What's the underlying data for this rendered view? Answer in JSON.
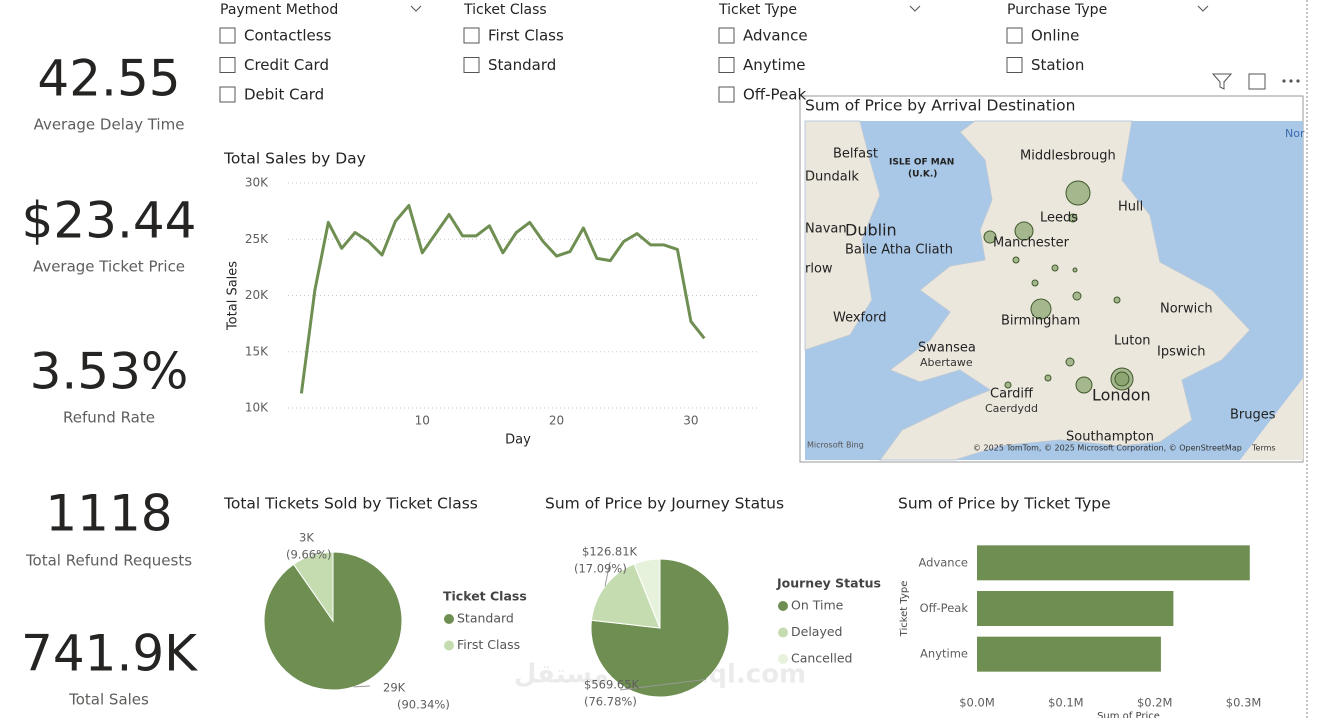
{
  "kpis": [
    {
      "value": "42.55",
      "label": "Average Delay Time"
    },
    {
      "value": "$23.44",
      "label": "Average Ticket Price"
    },
    {
      "value": "3.53%",
      "label": "Refund Rate"
    },
    {
      "value": "1118",
      "label": "Total Refund Requests"
    },
    {
      "value": "741.9K",
      "label": "Total Sales"
    }
  ],
  "slicers": [
    {
      "title": "Payment Method",
      "options": [
        "Contactless",
        "Credit Card",
        "Debit Card"
      ]
    },
    {
      "title": "Ticket Class",
      "options": [
        "First Class",
        "Standard"
      ]
    },
    {
      "title": "Ticket Type",
      "options": [
        "Advance",
        "Anytime",
        "Off-Peak"
      ]
    },
    {
      "title": "Purchase Type",
      "options": [
        "Online",
        "Station"
      ]
    }
  ],
  "map": {
    "title": "Sum of Price by Arrival Destination",
    "places": [
      "Belfast",
      "Dundalk",
      "ISLE OF MAN",
      "(U.K.)",
      "Middlesbrough",
      "Dublin",
      "Baile Atha Cliath",
      "Navan",
      "Leeds",
      "Hull",
      "Manchester",
      "rlow",
      "Wexford",
      "Birmingham",
      "Norwich",
      "Swansea",
      "Abertawe",
      "Luton",
      "Ipswich",
      "Cardiff",
      "Caerdydd",
      "London",
      "Bruges",
      "Southampton",
      "Nor"
    ],
    "attribution": "Microsoft Bing",
    "copyright": "© 2025 TomTom, © 2025 Microsoft Corporation, © OpenStreetMap",
    "terms": "Terms"
  },
  "watermark": "مستقل mostaql.com",
  "chart_data": [
    {
      "type": "line",
      "title": "Total Sales by Day",
      "x_label": "Day",
      "y_label": "Total Sales",
      "color": "#6f8f52",
      "x": [
        1,
        2,
        3,
        4,
        5,
        6,
        7,
        8,
        9,
        10,
        11,
        12,
        13,
        14,
        15,
        16,
        17,
        18,
        19,
        20,
        21,
        22,
        23,
        24,
        25,
        26,
        27,
        28,
        29,
        30,
        31
      ],
      "values": [
        11300,
        20500,
        26500,
        24200,
        25600,
        24800,
        23600,
        26600,
        28000,
        23800,
        25500,
        27200,
        25300,
        25300,
        26200,
        23800,
        25600,
        26500,
        24800,
        23500,
        23900,
        26000,
        23300,
        23100,
        24800,
        25500,
        24500,
        24500,
        24100,
        17700,
        16200
      ],
      "xlim": [
        0,
        35
      ],
      "xticks": [
        10,
        20,
        30
      ],
      "ylim": [
        10000,
        30000
      ],
      "yticks": [
        {
          "value": 10000,
          "label": "10K"
        },
        {
          "value": 15000,
          "label": "15K"
        },
        {
          "value": 20000,
          "label": "20K"
        },
        {
          "value": 25000,
          "label": "25K"
        },
        {
          "value": 30000,
          "label": "30K"
        }
      ],
      "grid": true
    },
    {
      "type": "pie",
      "title": "Total Tickets Sold by Ticket Class",
      "legend_title": "Ticket Class",
      "categories": [
        "Standard",
        "First Class"
      ],
      "values": [
        90.34,
        9.66
      ],
      "value_labels": [
        "(90.34%)",
        "(9.66%)"
      ],
      "amount_labels": [
        "29K",
        "3K"
      ],
      "colors": [
        "#6f8f52",
        "#c5dcb0"
      ]
    },
    {
      "type": "pie",
      "title": "Sum of Price by Journey Status",
      "legend_title": "Journey Status",
      "categories": [
        "On Time",
        "Delayed",
        "Cancelled"
      ],
      "values": [
        76.78,
        17.09,
        6.13
      ],
      "value_labels": [
        "(76.78%)",
        "(17.09%)",
        null
      ],
      "amount_labels": [
        "$569.65K",
        "$126.81K",
        null
      ],
      "colors": [
        "#6f8f52",
        "#c5dcb0",
        "#e6f2dc"
      ]
    },
    {
      "type": "bar",
      "orientation": "horizontal",
      "title": "Sum of Price by Ticket Type",
      "x_label": "Sum of Price",
      "y_label": "Ticket Type",
      "color": "#6f8f52",
      "categories": [
        "Advance",
        "Off-Peak",
        "Anytime"
      ],
      "values": [
        307000,
        221000,
        207000
      ],
      "xlim": [
        0,
        350000
      ],
      "xticks": [
        {
          "value": 0,
          "label": "$0.0M"
        },
        {
          "value": 100000,
          "label": "$0.1M"
        },
        {
          "value": 200000,
          "label": "$0.2M"
        },
        {
          "value": 300000,
          "label": "$0.3M"
        }
      ]
    }
  ]
}
